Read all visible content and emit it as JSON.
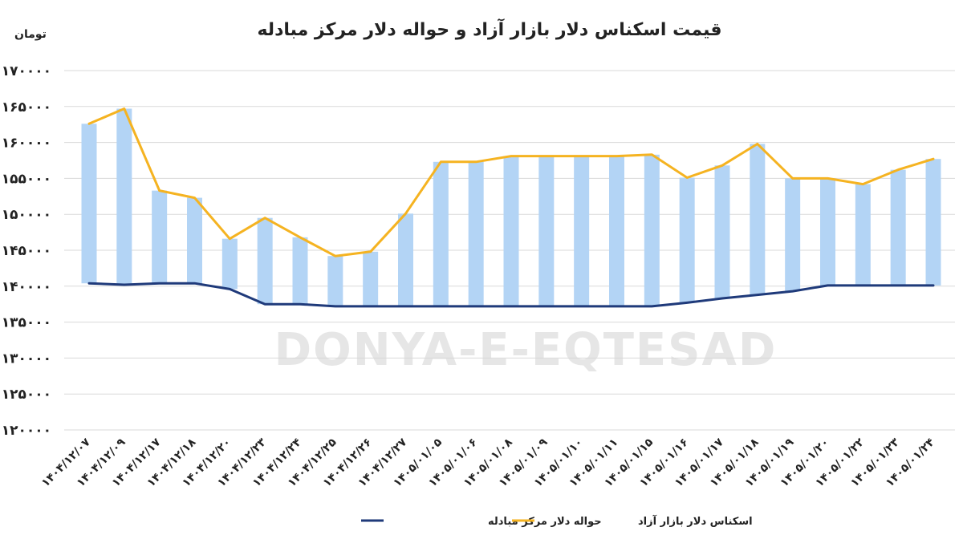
{
  "chart_data": {
    "type": "line",
    "title": "قیمت اسکناس دلار بازار آزاد و حواله دلار مرکز مبادله",
    "ylabel": "تومان",
    "ylim": [
      120000,
      170000
    ],
    "ytick_step": 5000,
    "yticks": [
      "۱۲۰۰۰۰",
      "۱۲۵۰۰۰",
      "۱۳۰۰۰۰",
      "۱۳۵۰۰۰",
      "۱۴۰۰۰۰",
      "۱۴۵۰۰۰",
      "۱۵۰۰۰۰",
      "۱۵۵۰۰۰",
      "۱۶۰۰۰۰",
      "۱۶۵۰۰۰",
      "۱۷۰۰۰۰"
    ],
    "grid": true,
    "legend_position": "bottom",
    "categories": [
      "۱۴۰۴/۱۲/۰۷",
      "۱۴۰۴/۱۲/۰۹",
      "۱۴۰۴/۱۲/۱۷",
      "۱۴۰۴/۱۲/۱۸",
      "۱۴۰۴/۱۲/۲۰",
      "۱۴۰۴/۱۲/۲۳",
      "۱۴۰۴/۱۲/۲۴",
      "۱۴۰۴/۱۲/۲۵",
      "۱۴۰۴/۱۲/۲۶",
      "۱۴۰۴/۱۲/۲۷",
      "۱۴۰۵/۰۱/۰۵",
      "۱۴۰۵/۰۱/۰۶",
      "۱۴۰۵/۰۱/۰۸",
      "۱۴۰۵/۰۱/۰۹",
      "۱۴۰۵/۰۱/۱۰",
      "۱۴۰۵/۰۱/۱۱",
      "۱۴۰۵/۰۱/۱۵",
      "۱۴۰۵/۰۱/۱۶",
      "۱۴۰۵/۰۱/۱۷",
      "۱۴۰۵/۰۱/۱۸",
      "۱۴۰۵/۰۱/۱۹",
      "۱۴۰۵/۰۱/۲۰",
      "۱۴۰۵/۰۱/۲۲",
      "۱۴۰۵/۰۱/۲۳",
      "۱۴۰۵/۰۱/۲۴"
    ],
    "series": [
      {
        "name": "اسکناس دلار بازار آزاد",
        "color": "#f5b321",
        "values": [
          162600,
          164700,
          153300,
          152300,
          146600,
          149500,
          146800,
          144200,
          144800,
          150100,
          157300,
          157300,
          158100,
          158100,
          158100,
          158100,
          158300,
          155100,
          156800,
          159800,
          155000,
          155000,
          154200,
          156200,
          157700
        ]
      },
      {
        "name": "حواله دلار مرکز مبادله",
        "color": "#1f3a7a",
        "values": [
          140400,
          140200,
          140400,
          140400,
          139600,
          137500,
          137500,
          137200,
          137200,
          137200,
          137200,
          137200,
          137200,
          137200,
          137200,
          137200,
          137200,
          137700,
          138300,
          138800,
          139300,
          140100,
          140100,
          140100,
          140100
        ]
      }
    ],
    "watermark": "DONYA-E-EQTESAD",
    "band_color": "#b3d4f5"
  }
}
